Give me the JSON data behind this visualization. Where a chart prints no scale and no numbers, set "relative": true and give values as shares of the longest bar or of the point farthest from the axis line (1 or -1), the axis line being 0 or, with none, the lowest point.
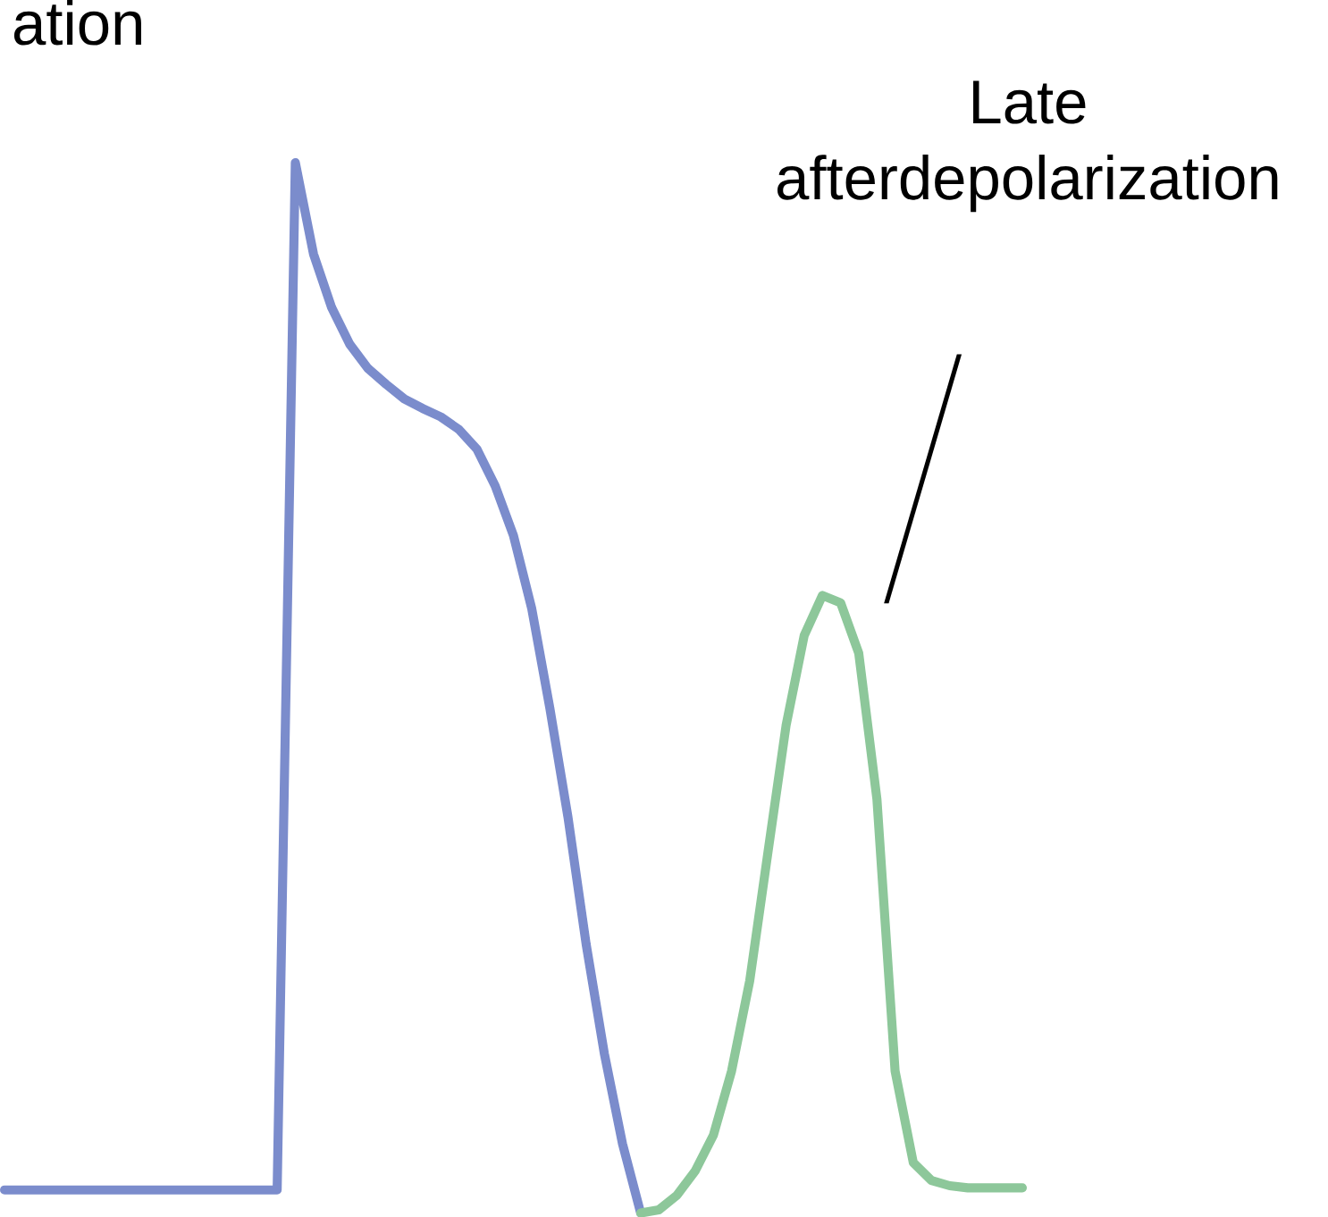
{
  "chart_data": {
    "type": "line",
    "relative": true,
    "marker": "none",
    "line_style": "solid",
    "categories": [
      null,
      null,
      null,
      null,
      null,
      null,
      null,
      null,
      null,
      null,
      null,
      null,
      null,
      null,
      null,
      null,
      null,
      null,
      null,
      null,
      null,
      null,
      null,
      null,
      null,
      null,
      null,
      null,
      null,
      null,
      null,
      null,
      null,
      null,
      null,
      null,
      null,
      null,
      null,
      null,
      null,
      null,
      null,
      null,
      null,
      null,
      null,
      null,
      null,
      null,
      null,
      null,
      null,
      null,
      null,
      null,
      null
    ],
    "series": [
      {
        "color": "#7b8ccc",
        "values": [
          0.022,
          0.022,
          0.022,
          0.022,
          0.022,
          0.022,
          0.022,
          0.022,
          0.022,
          0.022,
          0.022,
          0.022,
          0.022,
          0.022,
          0.022,
          0.022,
          1.0,
          0.913,
          0.862,
          0.827,
          0.804,
          0.789,
          0.775,
          0.766,
          0.758,
          0.746,
          0.727,
          0.692,
          0.645,
          0.576,
          0.481,
          0.377,
          0.256,
          0.152,
          0.066,
          0,
          null,
          null,
          null,
          null,
          null,
          null,
          null,
          null,
          null,
          null,
          null,
          null,
          null,
          null,
          null,
          null,
          null,
          null,
          null,
          null,
          null
        ]
      },
      {
        "color": "#8dc79a",
        "values": [
          null,
          null,
          null,
          null,
          null,
          null,
          null,
          null,
          null,
          null,
          null,
          null,
          null,
          null,
          null,
          null,
          null,
          null,
          null,
          null,
          null,
          null,
          null,
          null,
          null,
          null,
          null,
          null,
          null,
          null,
          null,
          null,
          null,
          null,
          null,
          0,
          0.003,
          0.017,
          0.04,
          0.074,
          0.135,
          0.221,
          0.343,
          0.464,
          0.55,
          0.588,
          0.581,
          0.533,
          0.394,
          0.135,
          0.048,
          0.031,
          0.026,
          0.024,
          0.024,
          0.024,
          0.024
        ]
      }
    ],
    "annotations": [
      "ation",
      "Late afterdepolarization"
    ]
  }
}
